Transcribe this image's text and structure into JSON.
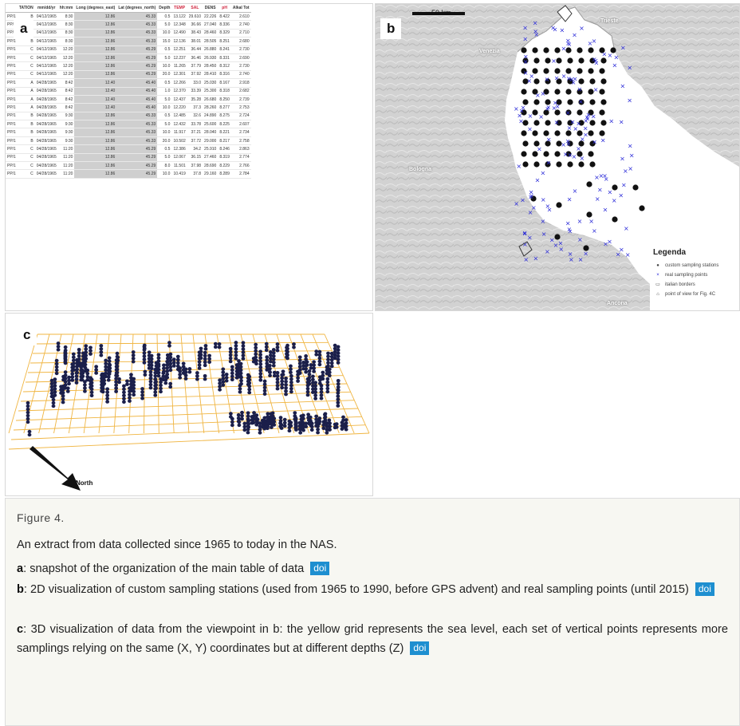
{
  "panels": {
    "a": {
      "letter": "a"
    },
    "b": {
      "letter": "b"
    },
    "c": {
      "letter": "c"
    }
  },
  "table": {
    "headers": [
      "TATION",
      "mm/dd/yr",
      "hh:mm",
      "Long (degrees_east)",
      "Lat (degrees_north)",
      "Depth",
      "TEMP",
      "SAL",
      "DENS",
      "pH",
      "Alkal Tot"
    ],
    "red_headers": [
      6,
      7,
      9
    ],
    "rows": [
      [
        "B",
        "04/12/1965",
        "8:30",
        "12.86",
        "45.33",
        "0.5",
        "13.122",
        "29.610",
        "22.226",
        "8.422",
        "2.610"
      ],
      [
        "B",
        "04/12/1965",
        "8:30",
        "12.86",
        "45.33",
        "5.0",
        "12.348",
        "36.66",
        "27.040",
        "8.336",
        "2.740"
      ],
      [
        "B",
        "04/12/1965",
        "8:30",
        "12.86",
        "45.33",
        "10.0",
        "12.490",
        "38.43",
        "28.460",
        "8.329",
        "2.710"
      ],
      [
        "B",
        "04/12/1965",
        "8:30",
        "12.86",
        "45.33",
        "15.0",
        "12.136",
        "38.01",
        "28.505",
        "8.251",
        "2.680"
      ],
      [
        "C",
        "04/12/1965",
        "12:20",
        "12.86",
        "45.29",
        "0.5",
        "12.251",
        "36.44",
        "26.880",
        "8.241",
        "2.730"
      ],
      [
        "C",
        "04/12/1965",
        "12:20",
        "12.86",
        "45.29",
        "5.0",
        "12.237",
        "36.46",
        "26.930",
        "8.331",
        "2.690"
      ],
      [
        "C",
        "04/12/1965",
        "12:20",
        "12.86",
        "45.29",
        "10.0",
        "11.265",
        "37.79",
        "28.450",
        "8.312",
        "2.730"
      ],
      [
        "C",
        "04/12/1965",
        "12:20",
        "12.86",
        "45.29",
        "20.0",
        "12.301",
        "37.92",
        "28.410",
        "8.316",
        "2.740"
      ],
      [
        "A",
        "04/28/1965",
        "8:42",
        "12.40",
        "45.40",
        "0.5",
        "12.266",
        "33.0",
        "25.030",
        "8.167",
        "2.918"
      ],
      [
        "A",
        "04/28/1965",
        "8:42",
        "12.40",
        "45.40",
        "1.0",
        "12.370",
        "33.39",
        "25.300",
        "8.318",
        "2.682"
      ],
      [
        "A",
        "04/28/1965",
        "8:42",
        "12.40",
        "45.40",
        "5.0",
        "12.437",
        "35.28",
        "26.680",
        "8.250",
        "2.739"
      ],
      [
        "A",
        "04/28/1965",
        "8:42",
        "12.40",
        "45.40",
        "10.0",
        "12.220",
        "37.3",
        "28.260",
        "8.277",
        "2.753"
      ],
      [
        "B",
        "04/28/1965",
        "9:30",
        "12.86",
        "45.33",
        "0.5",
        "12.485",
        "32.6",
        "24.890",
        "8.275",
        "2.724"
      ],
      [
        "B",
        "04/28/1965",
        "9:30",
        "12.86",
        "45.33",
        "5.0",
        "12.432",
        "33.78",
        "25.600",
        "8.225",
        "2.607"
      ],
      [
        "B",
        "04/28/1965",
        "9:30",
        "12.86",
        "45.33",
        "10.0",
        "11.917",
        "37.21",
        "28.040",
        "8.221",
        "2.734"
      ],
      [
        "B",
        "04/28/1965",
        "9:30",
        "12.86",
        "45.33",
        "20.0",
        "10.502",
        "37.72",
        "29.000",
        "8.217",
        "2.758"
      ],
      [
        "C",
        "04/28/1965",
        "11:20",
        "12.86",
        "45.29",
        "0.5",
        "12.386",
        "34.2",
        "25.910",
        "8.246",
        "2.863"
      ],
      [
        "C",
        "04/28/1965",
        "11:20",
        "12.86",
        "45.29",
        "5.0",
        "12.067",
        "36.15",
        "27.460",
        "8.319",
        "2.774"
      ],
      [
        "C",
        "04/28/1965",
        "11:20",
        "12.86",
        "45.29",
        "8.0",
        "11.501",
        "37.98",
        "28.690",
        "8.229",
        "2.766"
      ],
      [
        "C",
        "04/28/1965",
        "11:20",
        "12.86",
        "45.29",
        "10.0",
        "10.419",
        "37.8",
        "29.160",
        "8.289",
        "2.784"
      ]
    ],
    "row_prefix": "PP/1"
  },
  "map": {
    "scale_label": "50 km",
    "places": [
      {
        "name": "Venezia"
      },
      {
        "name": "Trieste"
      },
      {
        "name": "Bologna"
      },
      {
        "name": "Ancona"
      }
    ],
    "legend": {
      "title": "Legenda",
      "items": [
        {
          "symbol": "dot",
          "label": "custom sampling stations"
        },
        {
          "symbol": "cross",
          "label": "real sampling points"
        },
        {
          "symbol": "rect",
          "label": "italian borders"
        },
        {
          "symbol": "marker",
          "label": "point of view for Fig. 4C"
        }
      ]
    },
    "colors": {
      "station": "#111111",
      "sample": "#2a2ad8",
      "sea": "#ffffff",
      "land": "#cfcfcf"
    }
  },
  "view3d": {
    "north_label": "North",
    "colors": {
      "grid": "#f0b541",
      "column": "#1b1f4a"
    }
  },
  "caption": {
    "label": "Figure 4.",
    "intro": "An extract from data collected since 1965 to today in the NAS.",
    "items": [
      {
        "key": "a",
        "text": ": snapshot of the organization of the main table of data",
        "doi": "doi"
      },
      {
        "key": "b",
        "text": ": 2D visualization of custom sampling stations (used from 1965 to 1990, before GPS advent) and real sampling points (until 2015)",
        "doi": "doi"
      },
      {
        "key": "c",
        "text": ": 3D visualization of data from the viewpoint in b: the yellow grid represents the sea level, each set of vertical points represents more samplings relying on the same (X, Y) coordinates but at different depths (Z)",
        "doi": "doi"
      }
    ],
    "link_color": "#1e8fd0"
  }
}
